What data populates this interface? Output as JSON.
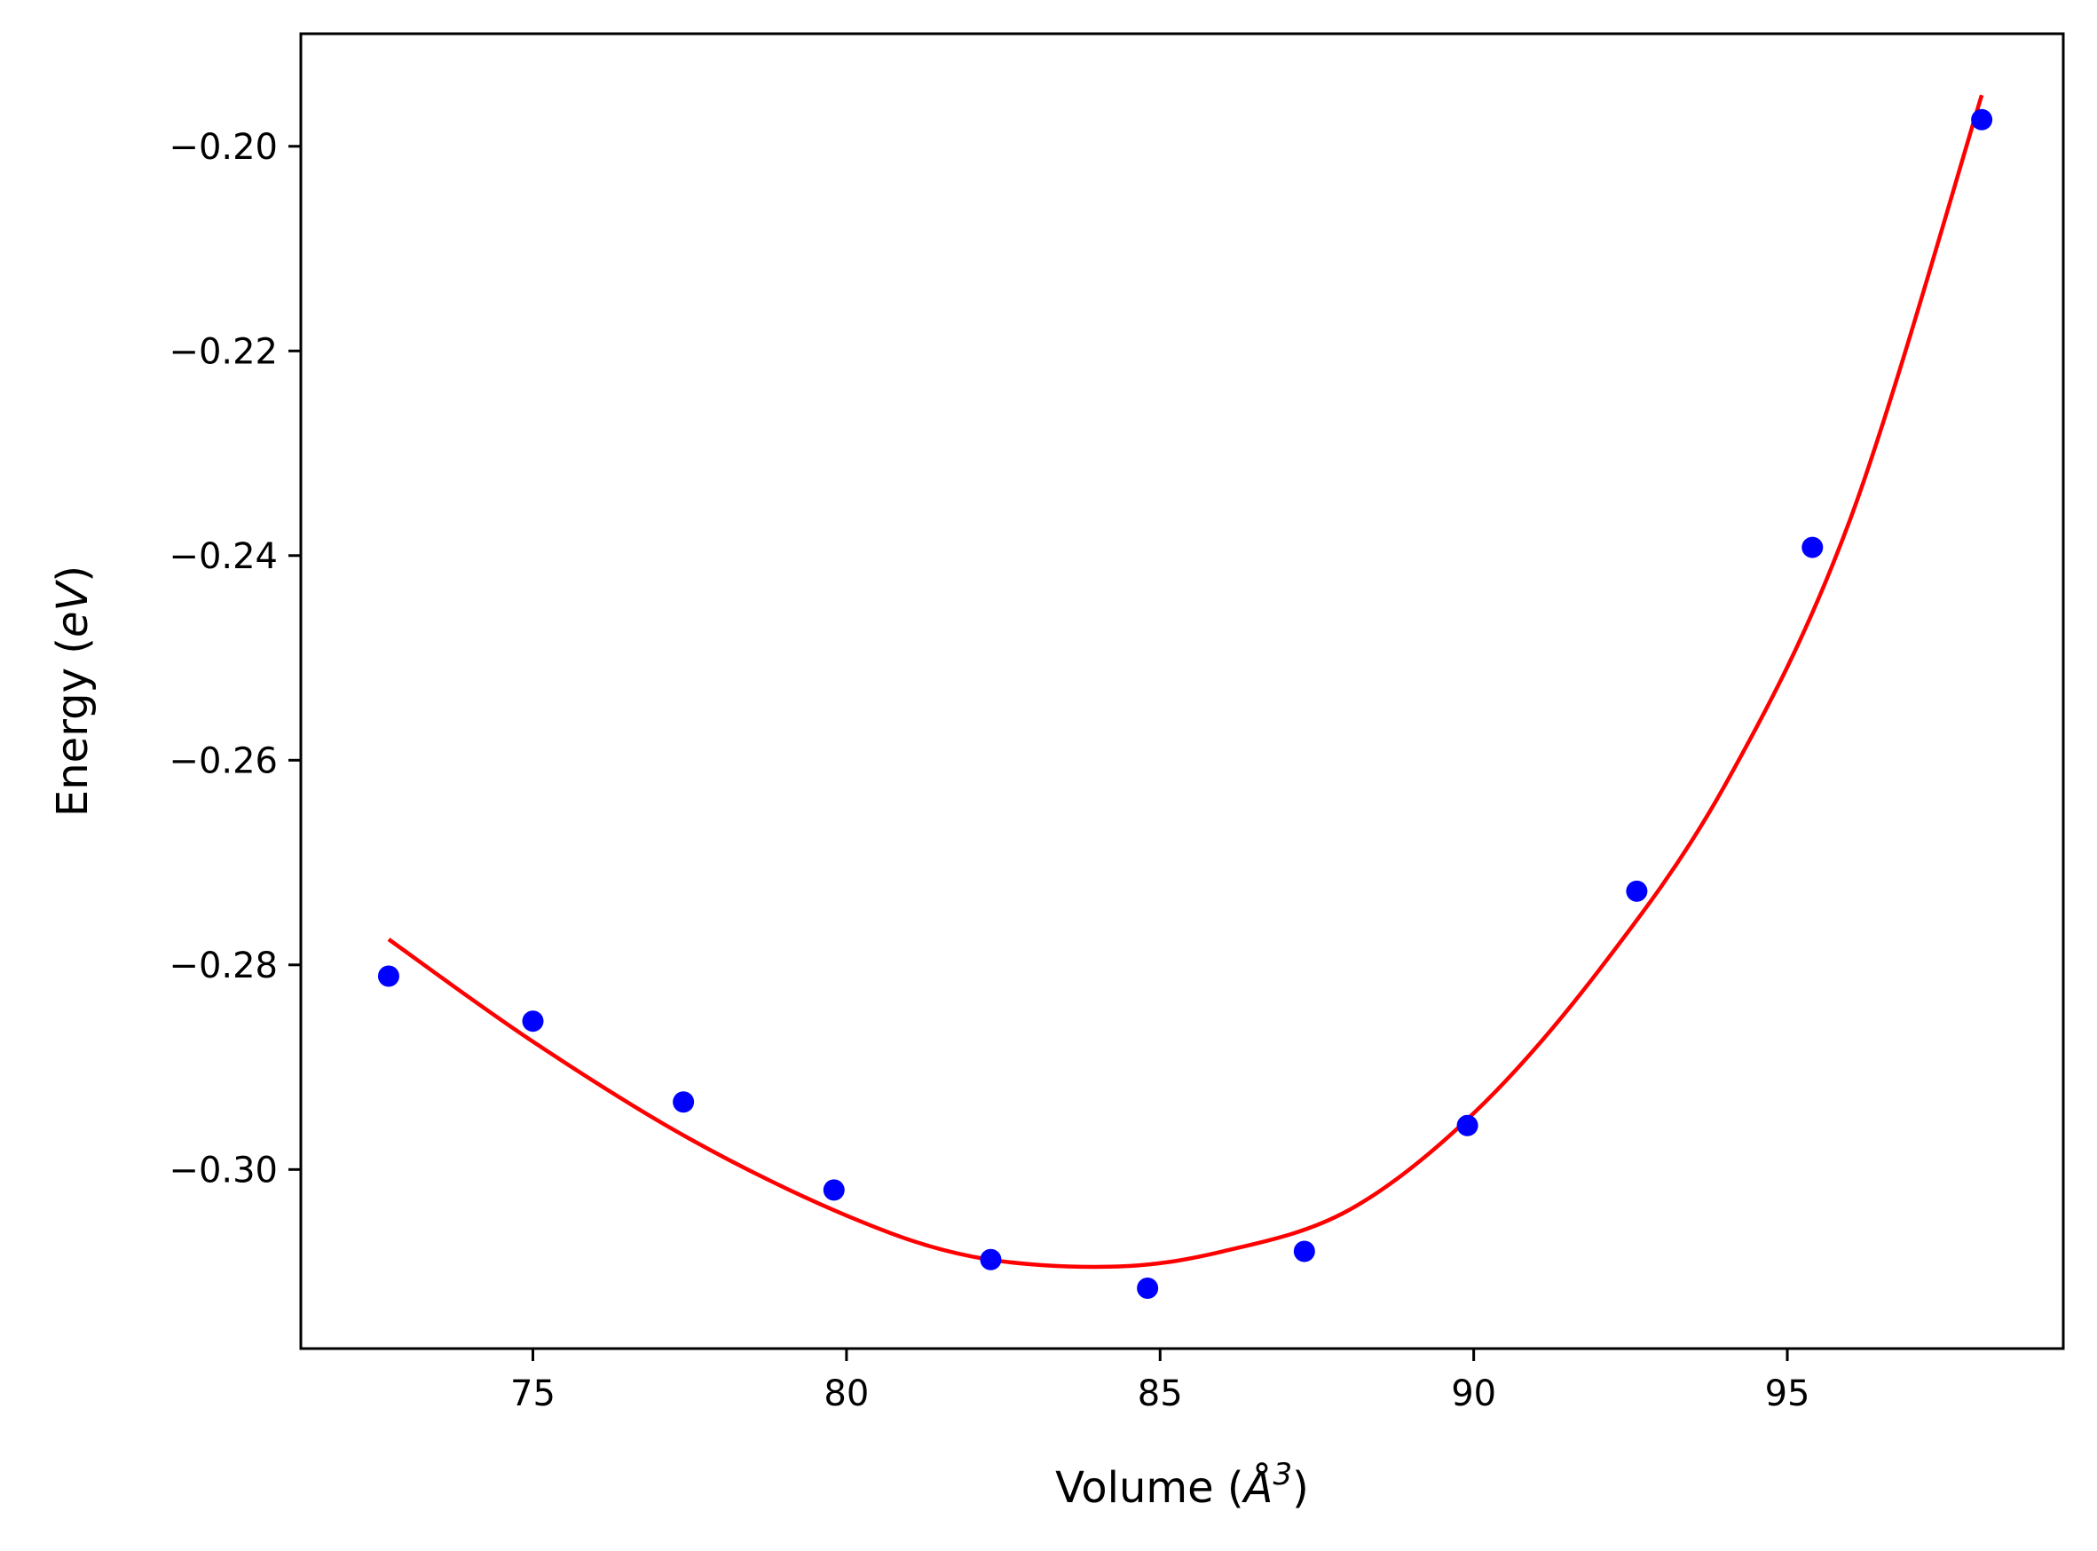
{
  "chart_data": {
    "type": "scatter",
    "xlabel": "Volume (Å³)",
    "ylabel": "Energy (eV)",
    "xlabel_parts": {
      "prefix": "Volume (",
      "symbol": "Å",
      "sup": "3",
      "suffix": ")"
    },
    "ylabel_parts": {
      "prefix": "Energy (",
      "unit": "eV",
      "suffix": ")"
    },
    "xlim": [
      71.3,
      99.4
    ],
    "ylim": [
      -0.3175,
      -0.189
    ],
    "x_ticks": [
      75,
      80,
      85,
      90,
      95
    ],
    "y_ticks": [
      -0.2,
      -0.22,
      -0.24,
      -0.26,
      -0.28,
      -0.3
    ],
    "x_tick_labels": [
      "75",
      "80",
      "85",
      "90",
      "95"
    ],
    "y_tick_labels": [
      "−0.20",
      "−0.22",
      "−0.24",
      "−0.26",
      "−0.28",
      "−0.30"
    ],
    "grid": false,
    "colors": {
      "points": "#0000ff",
      "fit": "#ff0000",
      "axes": "#000000"
    },
    "series": [
      {
        "kind": "points",
        "x": [
          72.7,
          75.0,
          77.4,
          79.8,
          82.3,
          84.8,
          87.3,
          89.9,
          92.6,
          95.4,
          98.1
        ],
        "y": [
          -0.2811,
          -0.2855,
          -0.2934,
          -0.302,
          -0.3088,
          -0.3116,
          -0.308,
          -0.2957,
          -0.2728,
          -0.2392,
          -0.1974
        ]
      },
      {
        "kind": "fit-curve",
        "x": [
          72.7,
          75.0,
          77.5,
          80.0,
          82.0,
          84.2,
          86.0,
          88.0,
          90.0,
          92.0,
          94.0,
          96.0,
          98.1
        ],
        "y": [
          -0.2775,
          -0.2875,
          -0.297,
          -0.3045,
          -0.3085,
          -0.3095,
          -0.308,
          -0.304,
          -0.2945,
          -0.2805,
          -0.2625,
          -0.2365,
          -0.195
        ]
      }
    ]
  }
}
